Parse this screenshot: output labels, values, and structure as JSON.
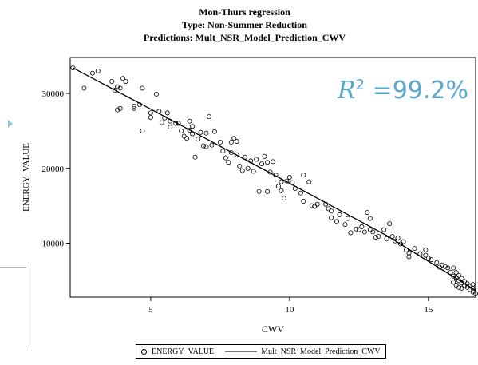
{
  "chart_data": {
    "type": "scatter",
    "title_lines": [
      "Mon-Thurs regression",
      "Type: Non-Summer Reduction",
      "Predictions: Mult_NSR_Model_Prediction_CWV"
    ],
    "xlabel": "CWV",
    "ylabel": "ENERGY_VALUE",
    "xlim": [
      2.1,
      16.7
    ],
    "ylim": [
      2800,
      34800
    ],
    "x_ticks": [
      5,
      10,
      15
    ],
    "y_ticks": [
      10000,
      20000,
      30000
    ],
    "annotation": {
      "symbol": "R",
      "exponent": "2",
      "text": " =99.2%"
    },
    "legend_placement": "bottom",
    "series": [
      {
        "name": "ENERGY_VALUE",
        "kind": "scatter",
        "points": [
          [
            2.2,
            33400
          ],
          [
            2.6,
            30700
          ],
          [
            2.9,
            32700
          ],
          [
            3.1,
            33000
          ],
          [
            3.6,
            31600
          ],
          [
            3.7,
            30400
          ],
          [
            3.8,
            30900
          ],
          [
            3.9,
            30700
          ],
          [
            4.0,
            32000
          ],
          [
            4.1,
            31600
          ],
          [
            3.8,
            27800
          ],
          [
            3.9,
            28000
          ],
          [
            4.4,
            28000
          ],
          [
            4.4,
            28300
          ],
          [
            4.6,
            28500
          ],
          [
            4.7,
            30700
          ],
          [
            4.7,
            25000
          ],
          [
            5.0,
            27400
          ],
          [
            5.0,
            26800
          ],
          [
            5.2,
            29900
          ],
          [
            5.3,
            27600
          ],
          [
            5.4,
            26100
          ],
          [
            5.5,
            26700
          ],
          [
            5.6,
            27400
          ],
          [
            5.7,
            25500
          ],
          [
            5.7,
            26300
          ],
          [
            5.9,
            26000
          ],
          [
            6.0,
            26000
          ],
          [
            6.1,
            25000
          ],
          [
            6.2,
            24300
          ],
          [
            6.3,
            24000
          ],
          [
            6.4,
            25100
          ],
          [
            6.4,
            26300
          ],
          [
            6.5,
            24600
          ],
          [
            6.5,
            25600
          ],
          [
            6.6,
            21500
          ],
          [
            6.7,
            23900
          ],
          [
            6.8,
            24800
          ],
          [
            6.9,
            23000
          ],
          [
            7.0,
            24700
          ],
          [
            7.0,
            22900
          ],
          [
            7.1,
            26900
          ],
          [
            7.2,
            23100
          ],
          [
            7.3,
            24900
          ],
          [
            7.5,
            23500
          ],
          [
            7.6,
            22300
          ],
          [
            7.7,
            21400
          ],
          [
            7.8,
            20800
          ],
          [
            7.9,
            23500
          ],
          [
            7.9,
            22100
          ],
          [
            8.0,
            24000
          ],
          [
            8.1,
            23600
          ],
          [
            8.1,
            21800
          ],
          [
            8.2,
            20300
          ],
          [
            8.3,
            19700
          ],
          [
            8.4,
            21500
          ],
          [
            8.5,
            20000
          ],
          [
            8.6,
            21000
          ],
          [
            8.7,
            19600
          ],
          [
            8.8,
            21200
          ],
          [
            8.9,
            16900
          ],
          [
            9.0,
            20600
          ],
          [
            9.1,
            21600
          ],
          [
            9.2,
            20800
          ],
          [
            9.2,
            16900
          ],
          [
            9.3,
            19500
          ],
          [
            9.4,
            20900
          ],
          [
            9.5,
            19100
          ],
          [
            9.6,
            17600
          ],
          [
            9.7,
            18200
          ],
          [
            9.7,
            17000
          ],
          [
            9.8,
            16000
          ],
          [
            9.9,
            18300
          ],
          [
            10.0,
            18800
          ],
          [
            10.1,
            18100
          ],
          [
            10.2,
            17300
          ],
          [
            10.4,
            16700
          ],
          [
            10.5,
            19100
          ],
          [
            10.5,
            15600
          ],
          [
            10.7,
            18200
          ],
          [
            10.8,
            15000
          ],
          [
            10.9,
            14900
          ],
          [
            11.0,
            15200
          ],
          [
            11.3,
            15200
          ],
          [
            11.4,
            14600
          ],
          [
            11.5,
            14300
          ],
          [
            11.5,
            13400
          ],
          [
            11.7,
            12900
          ],
          [
            11.8,
            13800
          ],
          [
            12.0,
            12500
          ],
          [
            12.1,
            13300
          ],
          [
            12.2,
            11400
          ],
          [
            12.4,
            11900
          ],
          [
            12.5,
            11800
          ],
          [
            12.6,
            12200
          ],
          [
            12.7,
            11500
          ],
          [
            12.8,
            14100
          ],
          [
            12.9,
            13300
          ],
          [
            12.9,
            11800
          ],
          [
            13.0,
            11500
          ],
          [
            13.1,
            10800
          ],
          [
            13.2,
            10900
          ],
          [
            13.4,
            11800
          ],
          [
            13.5,
            10600
          ],
          [
            13.6,
            12600
          ],
          [
            13.7,
            10900
          ],
          [
            13.8,
            10300
          ],
          [
            13.9,
            10700
          ],
          [
            14.0,
            9900
          ],
          [
            14.1,
            10200
          ],
          [
            14.2,
            9100
          ],
          [
            14.3,
            8700
          ],
          [
            14.3,
            8200
          ],
          [
            14.5,
            9300
          ],
          [
            14.7,
            8600
          ],
          [
            14.9,
            8400
          ],
          [
            14.9,
            9100
          ],
          [
            15.0,
            8000
          ],
          [
            15.1,
            7800
          ],
          [
            15.3,
            7400
          ],
          [
            15.4,
            6800
          ],
          [
            15.5,
            7100
          ],
          [
            15.6,
            6900
          ],
          [
            15.7,
            6700
          ],
          [
            15.8,
            6100
          ],
          [
            15.9,
            6700
          ],
          [
            15.9,
            5600
          ],
          [
            16.0,
            5400
          ],
          [
            16.0,
            6100
          ],
          [
            16.1,
            5000
          ],
          [
            16.1,
            5700
          ],
          [
            16.2,
            5300
          ],
          [
            16.2,
            4700
          ],
          [
            16.3,
            4900
          ],
          [
            16.3,
            4300
          ],
          [
            16.4,
            4600
          ],
          [
            16.4,
            4100
          ],
          [
            16.5,
            4300
          ],
          [
            16.5,
            3800
          ],
          [
            16.6,
            3500
          ],
          [
            16.6,
            4000
          ],
          [
            16.6,
            4500
          ],
          [
            16.7,
            3300
          ],
          [
            16.0,
            4400
          ],
          [
            16.1,
            4100
          ],
          [
            15.9,
            4800
          ],
          [
            16.2,
            4000
          ]
        ]
      },
      {
        "name": "Mult_NSR_Model_Prediction_CWV",
        "kind": "line",
        "points": [
          [
            2.2,
            33400
          ],
          [
            5.0,
            27900
          ],
          [
            10.0,
            18000
          ],
          [
            13.5,
            11000
          ],
          [
            16.7,
            3700
          ]
        ]
      }
    ]
  }
}
